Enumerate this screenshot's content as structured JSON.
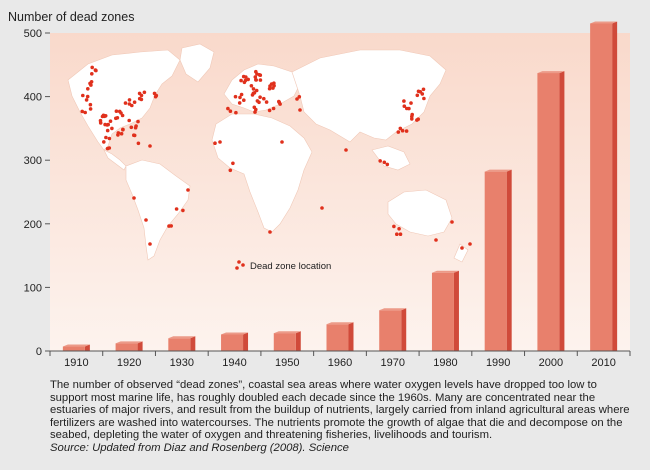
{
  "chart_data": {
    "type": "bar",
    "title": "Number of dead zones",
    "categories": [
      "1910",
      "1920",
      "1930",
      "1940",
      "1950",
      "1960",
      "1970",
      "1980",
      "1990",
      "2000",
      "2010"
    ],
    "values": [
      7,
      12,
      20,
      26,
      28,
      42,
      64,
      123,
      282,
      437,
      515
    ],
    "ylim": [
      0,
      500
    ],
    "yticks": [
      0,
      100,
      200,
      300,
      400,
      500
    ],
    "xlabel": "",
    "ylabel": "",
    "grid": false,
    "bar_color": "#e8806c",
    "bar_side_color": "#d04a3a",
    "legend": {
      "label": "Dead zone location",
      "placement": "inset-map-lower-center"
    }
  },
  "caption": {
    "text": "The number of observed “dead zones”, coastal sea areas where water oxygen levels have dropped too low to support most marine life, has roughly doubled each decade since the 1960s. Many are concentrated near the estuaries of major rivers, and result from the buildup of nutrients, largely carried from inland agricultural areas where fertilizers are washed into watercourses. The nutrients promote the growth of algae that die and decompose on the seabed, depleting the water of oxygen and threatening fisheries, livelihoods and tourism.",
    "source": "Source: Updated from Diaz and Rosenberg (2008). Science"
  },
  "colors": {
    "background": "#e9e9e9",
    "plot_gradient_top": "#f9d9cb",
    "plot_gradient_bottom": "#fdf3ee",
    "land": "#ffffff",
    "dead_zone_dot": "#e0301c"
  }
}
